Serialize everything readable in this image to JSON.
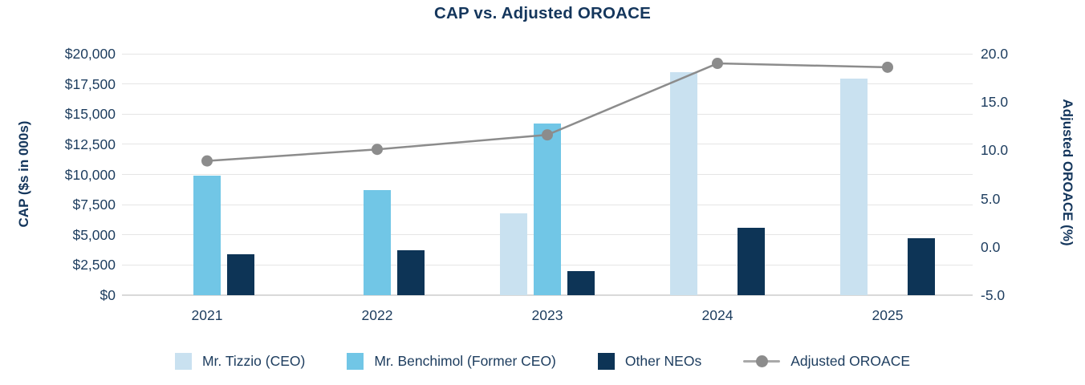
{
  "title": "CAP vs. Adjusted OROACE",
  "colors": {
    "light_blue": "#c9e1f0",
    "mid_blue": "#71c6e6",
    "navy": "#0d3456",
    "line_gray": "#8c8c8c",
    "legend_line_gray": "#a9a9a9",
    "text_navy": "#1c3c5e",
    "title_navy": "#14365c",
    "gridline": "#e5e5e5"
  },
  "chart_data": {
    "type": "combo-bar-line",
    "title": "CAP vs. Adjusted OROACE",
    "categories": [
      "2021",
      "2022",
      "2023",
      "2024",
      "2025"
    ],
    "bar_series": [
      {
        "name": "Mr. Tizzio (CEO)",
        "color_key": "light_blue",
        "values": [
          null,
          null,
          6800,
          18500,
          17950
        ]
      },
      {
        "name": "Mr. Benchimol (Former CEO)",
        "color_key": "mid_blue",
        "values": [
          9900,
          8700,
          14200,
          null,
          null
        ]
      },
      {
        "name": "Other NEOs",
        "color_key": "navy",
        "values": [
          3400,
          3700,
          2000,
          5600,
          4700
        ]
      }
    ],
    "line_series": {
      "name": "Adjusted OROACE",
      "color_key": "line_gray",
      "values": [
        8.9,
        10.1,
        11.6,
        19.0,
        18.6
      ]
    },
    "left_axis": {
      "title": "CAP ($s in 000s)",
      "tick_labels": [
        "$20,000",
        "$17,500",
        "$15,000",
        "$12,500",
        "$10,000",
        "$7,500",
        "$5,000",
        "$2,500",
        "$0"
      ],
      "min": 0,
      "max": 20000,
      "step": 2500
    },
    "right_axis": {
      "title": "Adjusted OROACE (%)",
      "tick_labels": [
        "20.0",
        "15.0",
        "10.0",
        "5.0",
        "0.0",
        "-5.0"
      ],
      "min": -5.0,
      "max": 20.0,
      "step": 5.0
    },
    "legend_position": "bottom",
    "grid": "horizontal"
  }
}
